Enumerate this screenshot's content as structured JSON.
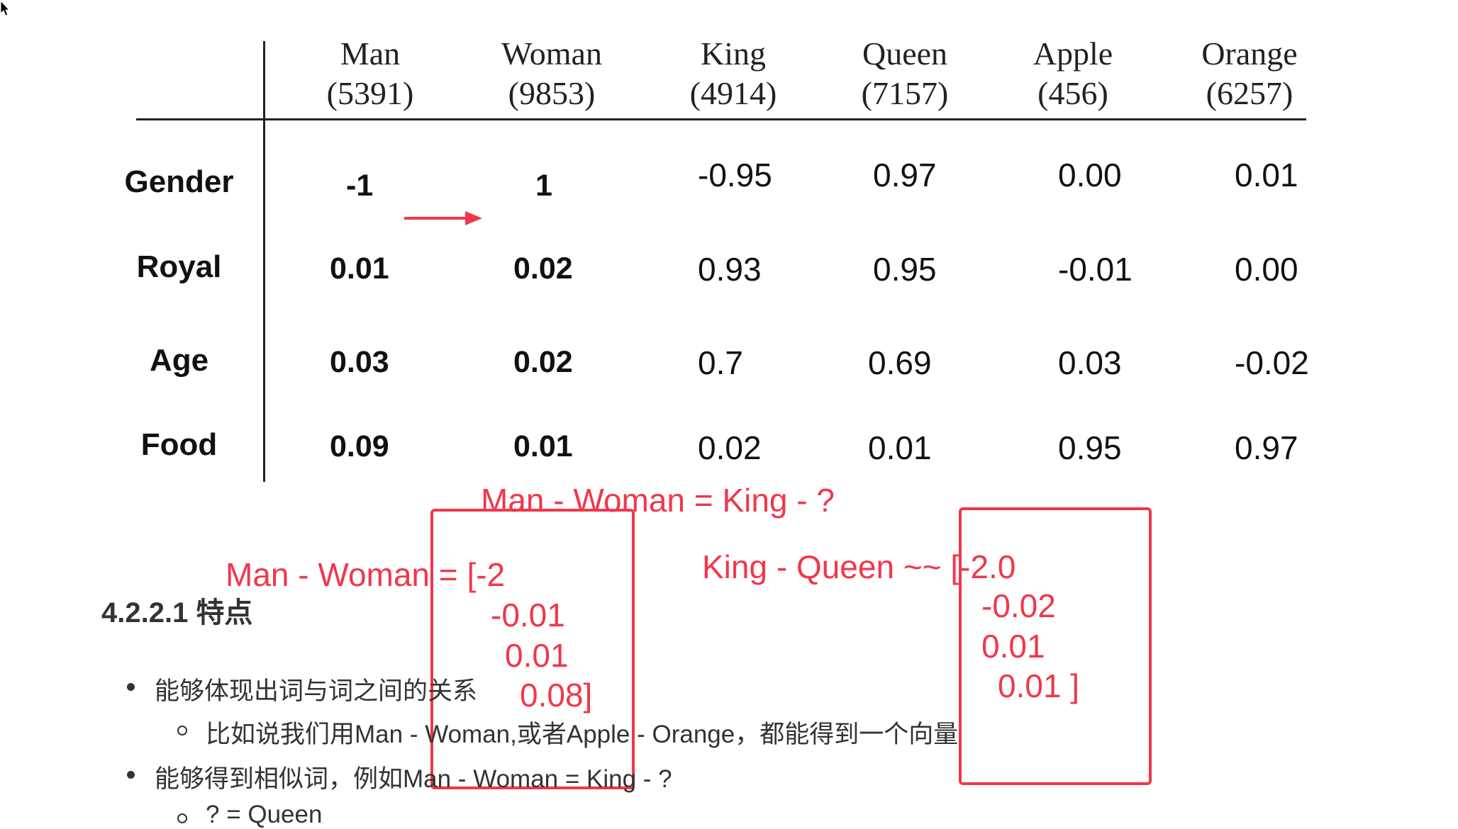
{
  "table": {
    "columns": [
      {
        "word": "Man",
        "index": "(5391)"
      },
      {
        "word": "Woman",
        "index": "(9853)"
      },
      {
        "word": "King",
        "index": "(4914)"
      },
      {
        "word": "Queen",
        "index": "(7157)"
      },
      {
        "word": "Apple",
        "index": "(456)"
      },
      {
        "word": "Orange",
        "index": "(6257)"
      }
    ],
    "rows": [
      {
        "feature": "Gender",
        "values": [
          "-1",
          "1",
          "-0.95",
          "0.97",
          "0.00",
          "0.01"
        ]
      },
      {
        "feature": "Royal",
        "values": [
          "0.01",
          "0.02",
          "0.93",
          "0.95",
          "-0.01",
          "0.00"
        ]
      },
      {
        "feature": "Age",
        "values": [
          "0.03",
          "0.02",
          "0.7",
          "0.69",
          "0.03",
          "-0.02"
        ]
      },
      {
        "feature": "Food",
        "values": [
          "0.09",
          "0.01",
          "0.02",
          "0.01",
          "0.95",
          "0.97"
        ]
      }
    ]
  },
  "annotations": {
    "analogy": "Man - Woman = King - ?",
    "man_woman_label": "Man - Woman = [-2",
    "man_woman_values": [
      "-0.01",
      "0.01",
      "0.08]"
    ],
    "king_queen_label": "King - Queen ~~ [-2.0",
    "king_queen_values": [
      "-0.02",
      "0.01",
      "0.01 ]"
    ],
    "accent_color": "#f0374b"
  },
  "doc": {
    "heading": "4.2.2.1 特点",
    "bullets": [
      {
        "text": "能够体现出词与词之间的关系",
        "sub": "比如说我们用Man - Woman,或者Apple - Orange，都能得到一个向量"
      },
      {
        "text": "能够得到相似词，例如Man - Woman = King - ?",
        "sub": "? = Queen"
      }
    ]
  }
}
